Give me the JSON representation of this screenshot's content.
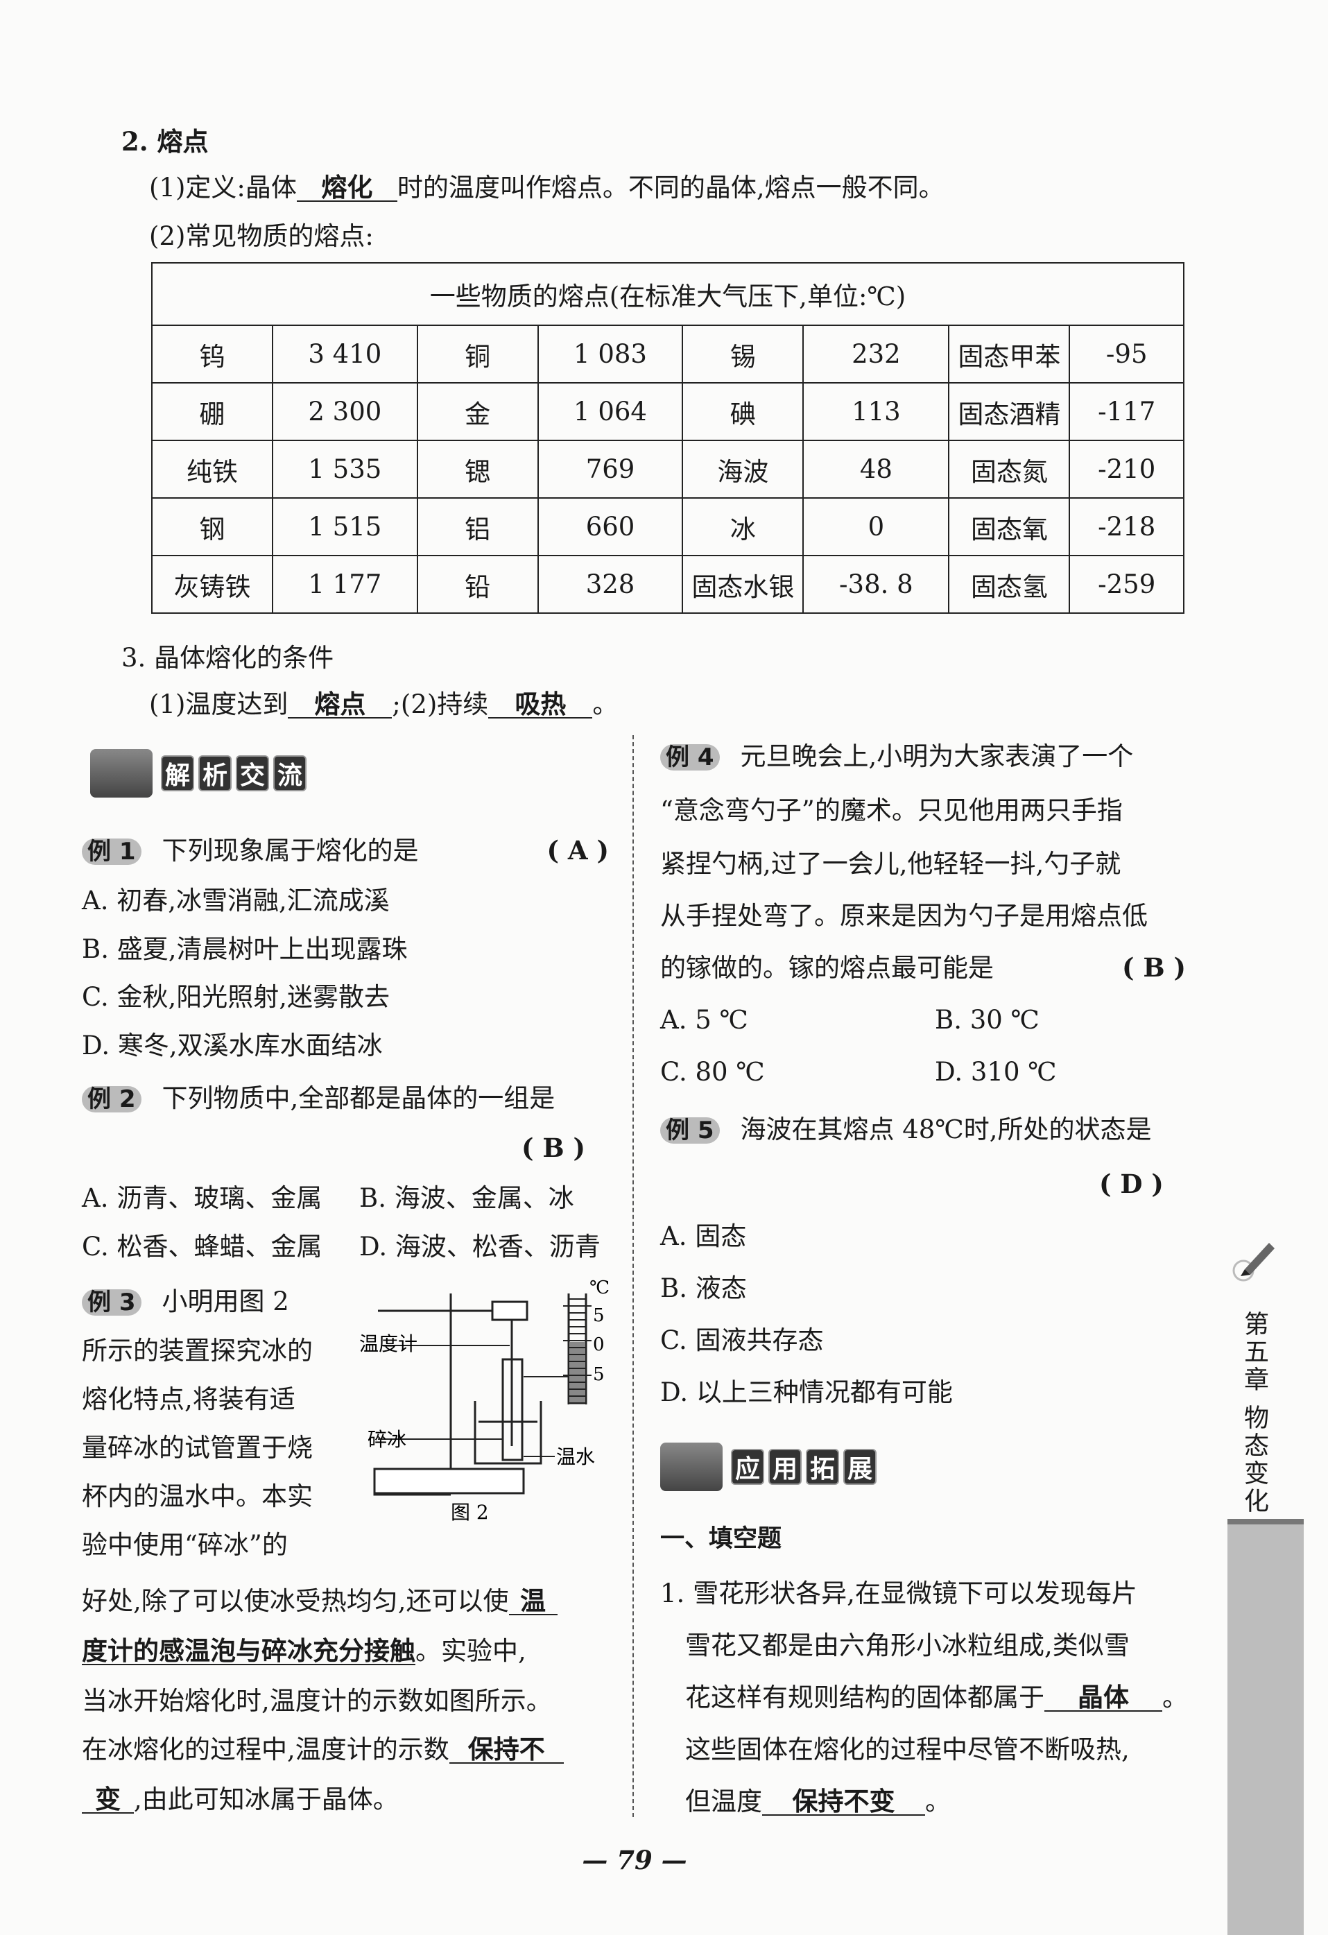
{
  "s2": {
    "title": "2. 熔点",
    "def_pre": "(1)定义:晶体",
    "def_blank": "熔化",
    "def_post": "时的温度叫作熔点。不同的晶体,熔点一般不同。",
    "common": "(2)常见物质的熔点:"
  },
  "table": {
    "title": "一些物质的熔点(在标准大气压下,单位:℃)",
    "rows": [
      [
        "钨",
        "3 410",
        "铜",
        "1 083",
        "锡",
        "232",
        "固态甲苯",
        "-95"
      ],
      [
        "硼",
        "2 300",
        "金",
        "1 064",
        "碘",
        "113",
        "固态酒精",
        "-117"
      ],
      [
        "纯铁",
        "1 535",
        "锶",
        "769",
        "海波",
        "48",
        "固态氮",
        "-210"
      ],
      [
        "钢",
        "1 515",
        "铝",
        "660",
        "冰",
        "0",
        "固态氧",
        "-218"
      ],
      [
        "灰铸铁",
        "1 177",
        "铅",
        "328",
        "固态水银",
        "-38. 8",
        "固态氢",
        "-259"
      ]
    ]
  },
  "s3": {
    "title": "3. 晶体熔化的条件",
    "p1": "(1)温度达到",
    "b1": "熔点",
    "p2": ";(2)持续",
    "b2": "吸热",
    "p3": "。"
  },
  "sec1": {
    "chars": [
      "解",
      "析",
      "交",
      "流"
    ]
  },
  "ex1": {
    "label": "例 1",
    "q": "下列现象属于熔化的是",
    "ans": "( A )",
    "opts": [
      "A. 初春,冰雪消融,汇流成溪",
      "B. 盛夏,清晨树叶上出现露珠",
      "C. 金秋,阳光照射,迷雾散去",
      "D. 寒冬,双溪水库水面结冰"
    ]
  },
  "ex2": {
    "label": "例 2",
    "q": "下列物质中,全部都是晶体的一组是",
    "ans": "( B )",
    "opts": [
      "A. 沥青、玻璃、金属",
      "B. 海波、金属、冰",
      "C. 松香、蜂蜡、金属",
      "D. 海波、松香、沥青"
    ]
  },
  "ex3": {
    "label": "例 3",
    "lines": [
      "小明用图 2",
      "所示的装置探究冰的",
      "熔化特点,将装有适",
      "量碎冰的试管置于烧",
      "杯内的温水中。本实",
      "验中使用“碎冰”的"
    ],
    "l7_pre": "好处,除了可以使冰受热均匀,还可以使",
    "l7_blank": "温",
    "l8_blank": "度计的感温泡与碎冰充分接触",
    "l8_post": "。实验中,",
    "l9": "当冰开始熔化时,温度计的示数如图所示。",
    "l10_pre": "在冰熔化的过程中,温度计的示数",
    "l10_blank": "保持不",
    "l11_blank": "变",
    "l11_post": ",由此可知冰属于晶体。",
    "fig": {
      "caption": "图 2",
      "thermo": "温度计",
      "ice": "碎冰",
      "water": "温水",
      "unit": "℃",
      "ticks": [
        "5",
        "0",
        "5"
      ]
    }
  },
  "ex4": {
    "label": "例 4",
    "lines": [
      "元旦晚会上,小明为大家表演了一个",
      "“意念弯勺子”的魔术。只见他用两只手指",
      "紧捏勺柄,过了一会儿,他轻轻一抖,勺子就",
      "从手捏处弯了。原来是因为勺子是用熔点低",
      "的镓做的。镓的熔点最可能是"
    ],
    "ans": "( B )",
    "opts": [
      "A. 5 ℃",
      "B. 30 ℃",
      "C. 80 ℃",
      "D. 310 ℃"
    ]
  },
  "ex5": {
    "label": "例 5",
    "q": "海波在其熔点 48℃时,所处的状态是",
    "ans": "( D )",
    "opts": [
      "A. 固态",
      "B. 液态",
      "C. 固液共存态",
      "D. 以上三种情况都有可能"
    ]
  },
  "sec2": {
    "chars": [
      "应",
      "用",
      "拓",
      "展"
    ]
  },
  "fill": {
    "heading": "一、填空题",
    "q1": "1. 雪花形状各异,在显微镜下可以发现每片",
    "l2": "雪花又都是由六角形小冰粒组成,类似雪",
    "l3_pre": "花这样有规则结构的固体都属于",
    "l3_blank": "晶体",
    "l3_post": "。",
    "l4": "这些固体在熔化的过程中尽管不断吸热,",
    "l5_pre": "但温度",
    "l5_blank": "保持不变",
    "l5_post": "。"
  },
  "side": {
    "chapter": "第五章",
    "topic": "物态变化"
  },
  "page": {
    "number": "— 79 —"
  }
}
